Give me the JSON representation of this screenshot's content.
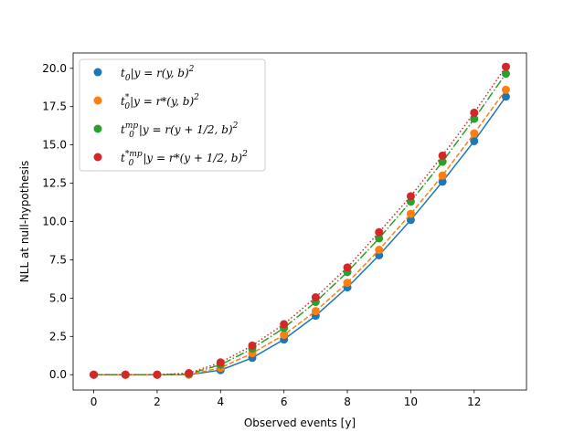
{
  "chart_data": {
    "type": "line",
    "title": "",
    "xlabel": "Observed events [y]",
    "ylabel": "NLL at null-hypothesis",
    "xlim": [
      -0.65,
      13.65
    ],
    "ylim": [
      -1.0,
      21.0
    ],
    "xticks": [
      0,
      2,
      4,
      6,
      8,
      10,
      12
    ],
    "yticks": [
      0.0,
      2.5,
      5.0,
      7.5,
      10.0,
      12.5,
      15.0,
      17.5,
      20.0
    ],
    "xtick_labels": [
      "0",
      "2",
      "4",
      "6",
      "8",
      "10",
      "12"
    ],
    "ytick_labels": [
      "0.0",
      "2.5",
      "5.0",
      "7.5",
      "10.0",
      "12.5",
      "15.0",
      "17.5",
      "20.0"
    ],
    "grid": false,
    "legend_position": "top-left",
    "x": [
      0,
      1,
      2,
      3,
      4,
      5,
      6,
      7,
      8,
      9,
      10,
      11,
      12,
      13
    ],
    "series": [
      {
        "name": "t_0 | y = r(y,b)^2",
        "legend": {
          "t": "t",
          "sub": "0",
          "sup": "",
          "rest": "|y = r(y, b)",
          "pow": "2"
        },
        "color": "#1f77b4",
        "linestyle": "solid",
        "values": [
          0.0,
          0.0,
          0.0,
          0.0,
          0.3,
          1.1,
          2.3,
          3.85,
          5.7,
          7.8,
          10.1,
          12.6,
          15.25,
          18.15
        ]
      },
      {
        "name": "t_0^* | y = r^*(y,b)^2",
        "legend": {
          "t": "t",
          "sub": "0",
          "sup": "*",
          "rest": "|y = r*(y, b)",
          "pow": "2"
        },
        "color": "#ff7f0e",
        "linestyle": "dashed",
        "values": [
          0.0,
          0.0,
          0.0,
          0.0,
          0.45,
          1.4,
          2.6,
          4.15,
          6.0,
          8.15,
          10.5,
          13.0,
          15.75,
          18.6
        ]
      },
      {
        "name": "t_0^mp | y = r(y+1/2,b)^2",
        "legend": {
          "t": "t",
          "sub": "0",
          "sup": "mp",
          "rest": "|y = r(y + 1/2, b)",
          "pow": "2"
        },
        "color": "#2ca02c",
        "linestyle": "dashdot",
        "values": [
          0.0,
          0.0,
          0.0,
          0.05,
          0.65,
          1.7,
          3.05,
          4.75,
          6.7,
          8.9,
          11.3,
          13.9,
          16.7,
          19.65
        ]
      },
      {
        "name": "t_0^*mp | y = r^*(y+1/2,b)^2",
        "legend": {
          "t": "t",
          "sub": "0",
          "sup": "*mp",
          "rest": "|y = r*(y + 1/2, b)",
          "pow": "2"
        },
        "color": "#d62728",
        "linestyle": "dotted",
        "values": [
          0.0,
          0.0,
          0.0,
          0.1,
          0.8,
          1.9,
          3.3,
          5.05,
          7.0,
          9.3,
          11.65,
          14.3,
          17.1,
          20.1
        ]
      }
    ]
  }
}
